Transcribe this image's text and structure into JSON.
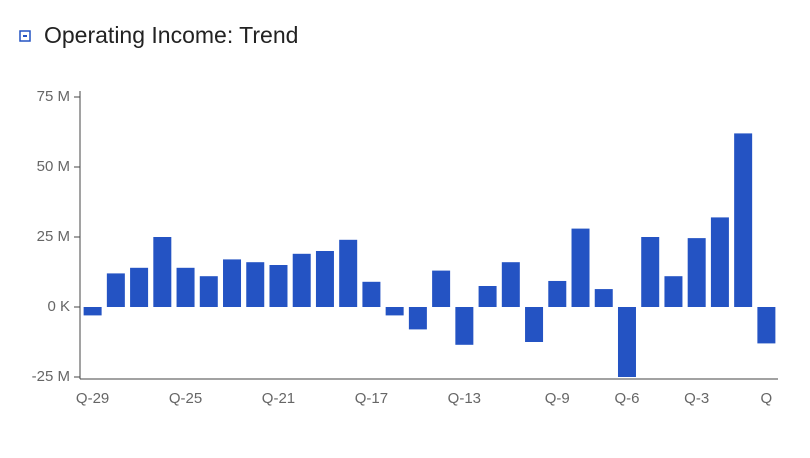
{
  "chart_data": {
    "type": "bar",
    "title": "Operating Income: Trend",
    "categories": [
      "Q-29",
      null,
      null,
      null,
      "Q-25",
      null,
      null,
      null,
      "Q-21",
      null,
      null,
      null,
      "Q-17",
      null,
      null,
      null,
      "Q-13",
      null,
      null,
      null,
      "Q-9",
      null,
      null,
      "Q-6",
      null,
      null,
      "Q-3",
      null,
      null,
      "Q"
    ],
    "values": [
      -3,
      12,
      14,
      25,
      14,
      11,
      17,
      16,
      15,
      19,
      20,
      24,
      9,
      -3,
      -8,
      13,
      -13.5,
      7.5,
      16,
      -12.5,
      9.3,
      28,
      6.4,
      -25,
      25,
      11,
      24.6,
      32,
      62,
      -13
    ],
    "color": "#2453c3",
    "ylim": [
      -25,
      75
    ],
    "yticks": [
      {
        "value": -25,
        "label": "-25 M"
      },
      {
        "value": 0,
        "label": "0 K"
      },
      {
        "value": 25,
        "label": "25 M"
      },
      {
        "value": 50,
        "label": "50 M"
      },
      {
        "value": 75,
        "label": "75 M"
      }
    ],
    "grid": false
  }
}
